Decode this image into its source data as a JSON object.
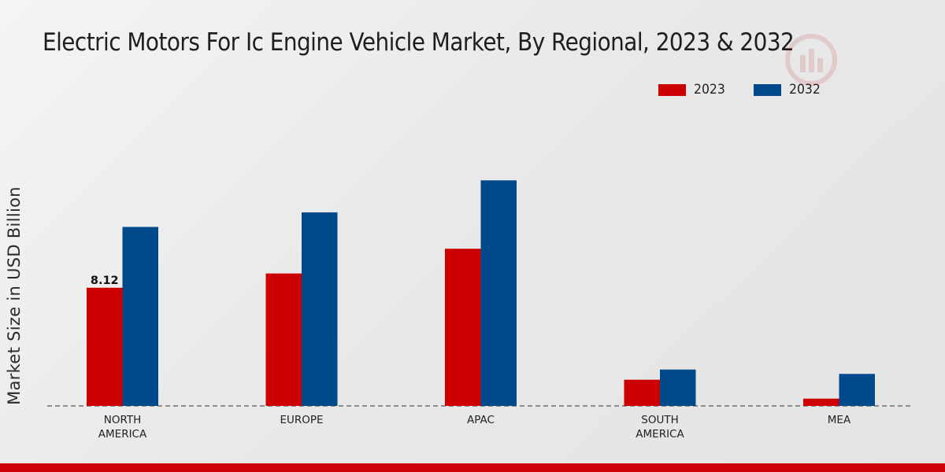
{
  "chart_data": {
    "type": "bar",
    "title": "Electric Motors For Ic Engine Vehicle Market, By Regional, 2023 & 2032",
    "ylabel": "Market Size in USD Billion",
    "xlabel": "",
    "categories": [
      "NORTH AMERICA",
      "EUROPE",
      "APAC",
      "SOUTH AMERICA",
      "MEA"
    ],
    "category_lines": [
      [
        "NORTH",
        "AMERICA"
      ],
      [
        "EUROPE"
      ],
      [
        "APAC"
      ],
      [
        "SOUTH",
        "AMERICA"
      ],
      [
        "MEA"
      ]
    ],
    "series": [
      {
        "name": "2023",
        "color": "#cc0000",
        "values": [
          8.12,
          9.1,
          10.8,
          1.8,
          0.5
        ]
      },
      {
        "name": "2032",
        "color": "#004a8c",
        "values": [
          12.3,
          13.3,
          15.5,
          2.5,
          2.2
        ]
      }
    ],
    "data_labels": [
      {
        "series": 0,
        "index": 0,
        "text": "8.12"
      }
    ],
    "ylim": [
      0,
      20
    ],
    "grid": false,
    "legend_position": "top-right"
  }
}
